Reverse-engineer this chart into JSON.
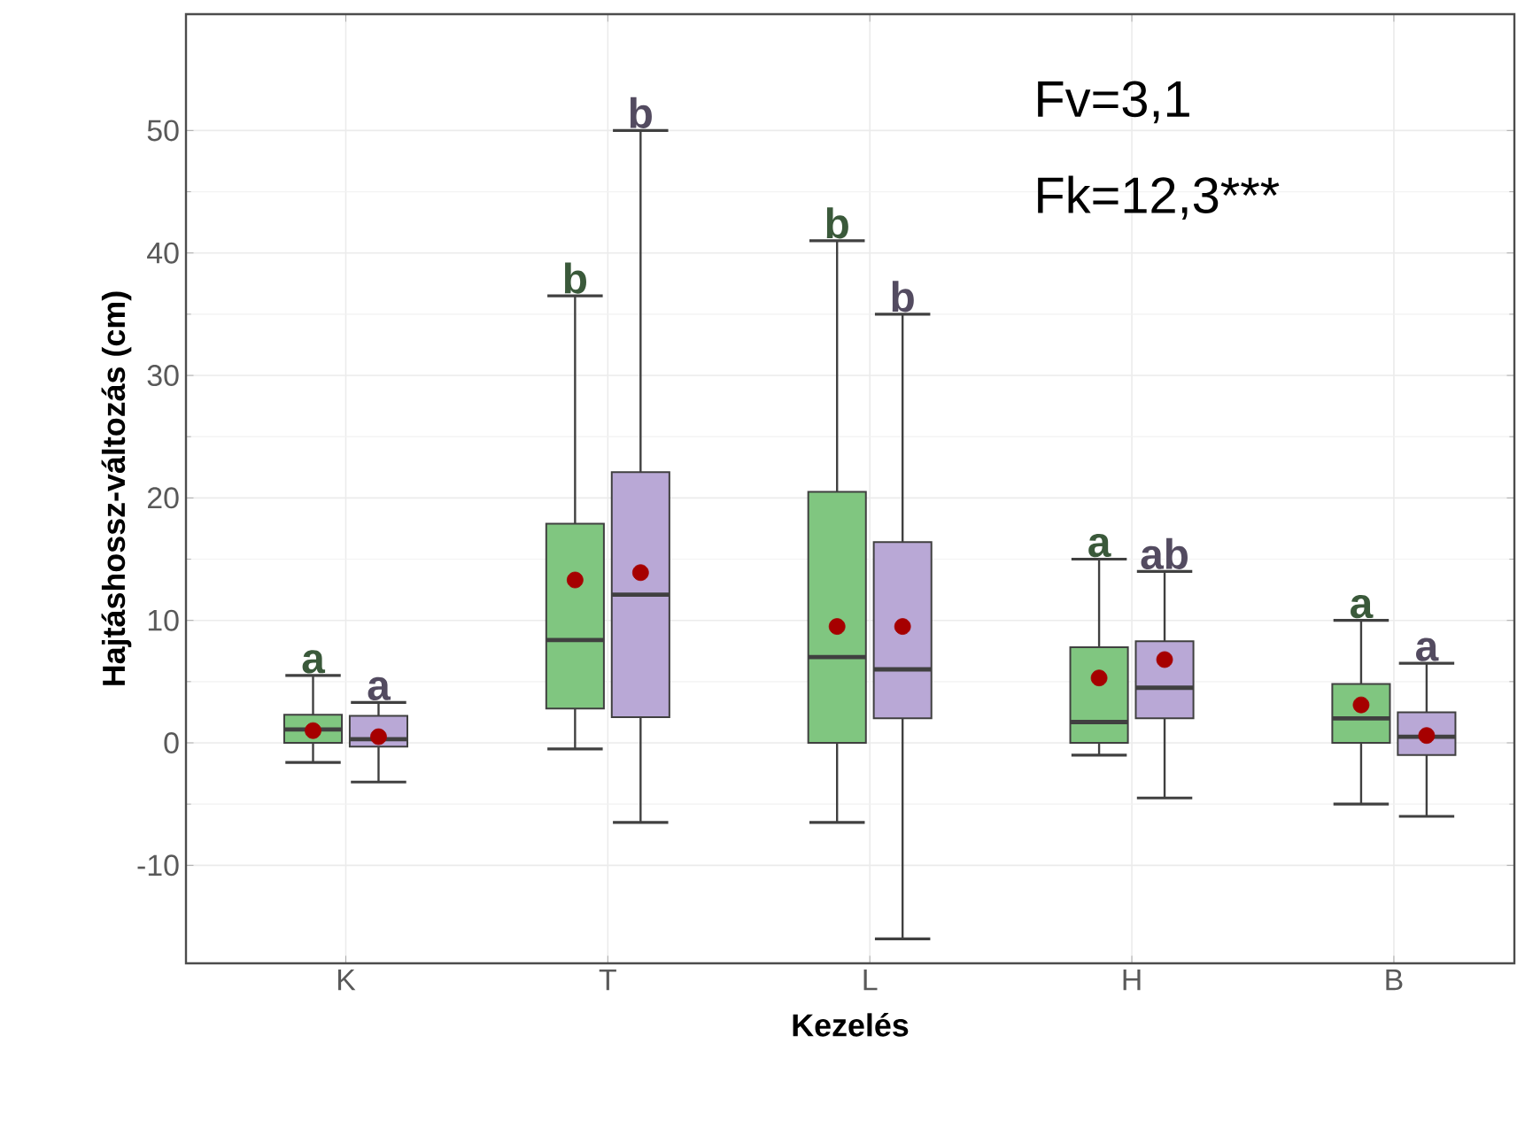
{
  "chart_data": {
    "type": "box",
    "xlabel": "Kezelés",
    "ylabel": "Hajtáshossz-változás (cm)",
    "categories": [
      "K",
      "T",
      "L",
      "H",
      "B"
    ],
    "series": [
      {
        "color": "#80c680",
        "boxes": [
          {
            "low": -1.6,
            "q1": 0,
            "median": 1.1,
            "q3": 2.3,
            "high": 5.5,
            "mean": 1.0
          },
          {
            "low": -0.5,
            "q1": 2.8,
            "median": 8.4,
            "q3": 17.9,
            "high": 36.5,
            "mean": 13.3
          },
          {
            "low": -6.5,
            "q1": 0,
            "median": 7,
            "q3": 20.5,
            "high": 41,
            "mean": 9.5
          },
          {
            "low": -1,
            "q1": 0,
            "median": 1.7,
            "q3": 7.8,
            "high": 15,
            "mean": 5.3
          },
          {
            "low": -5,
            "q1": 0,
            "median": 2,
            "q3": 4.8,
            "high": 10,
            "mean": 3.1
          }
        ]
      },
      {
        "color": "#b9a8d6",
        "boxes": [
          {
            "low": -3.2,
            "q1": -0.3,
            "median": 0.3,
            "q3": 2.2,
            "high": 3.3,
            "mean": 0.5
          },
          {
            "low": -6.5,
            "q1": 2.1,
            "median": 12.1,
            "q3": 22.1,
            "high": 50,
            "mean": 13.9
          },
          {
            "low": -16,
            "q1": 2,
            "median": 6,
            "q3": 16.4,
            "high": 35,
            "mean": 9.5
          },
          {
            "low": -4.5,
            "q1": 2,
            "median": 4.5,
            "q3": 8.3,
            "high": 14,
            "mean": 6.8
          },
          {
            "low": -6,
            "q1": -1,
            "median": 0.5,
            "q3": 2.5,
            "high": 6.5,
            "mean": 0.6
          }
        ]
      }
    ],
    "ylim": [
      -18,
      59.5
    ],
    "yticks": [
      -10,
      0,
      10,
      20,
      30,
      40,
      50
    ],
    "grid": true,
    "annotations": [
      {
        "text": "a",
        "x": "K",
        "y": 5.5
      },
      {
        "text": "a",
        "x": "K",
        "y": 3.3
      },
      {
        "text": "b",
        "x": "T",
        "y": 36.5
      },
      {
        "text": "b",
        "x": "T",
        "y": 50
      },
      {
        "text": "b",
        "x": "L",
        "y": 41
      },
      {
        "text": "b",
        "x": "L",
        "y": 35
      },
      {
        "text": "a",
        "x": "H",
        "y": 15
      },
      {
        "text": "ab",
        "x": "H",
        "y": 14
      },
      {
        "text": "a",
        "x": "B",
        "y": 10
      },
      {
        "text": "a",
        "x": "B",
        "y": 6.5
      },
      "Fv=3,1",
      "Fk=12,3***"
    ]
  }
}
